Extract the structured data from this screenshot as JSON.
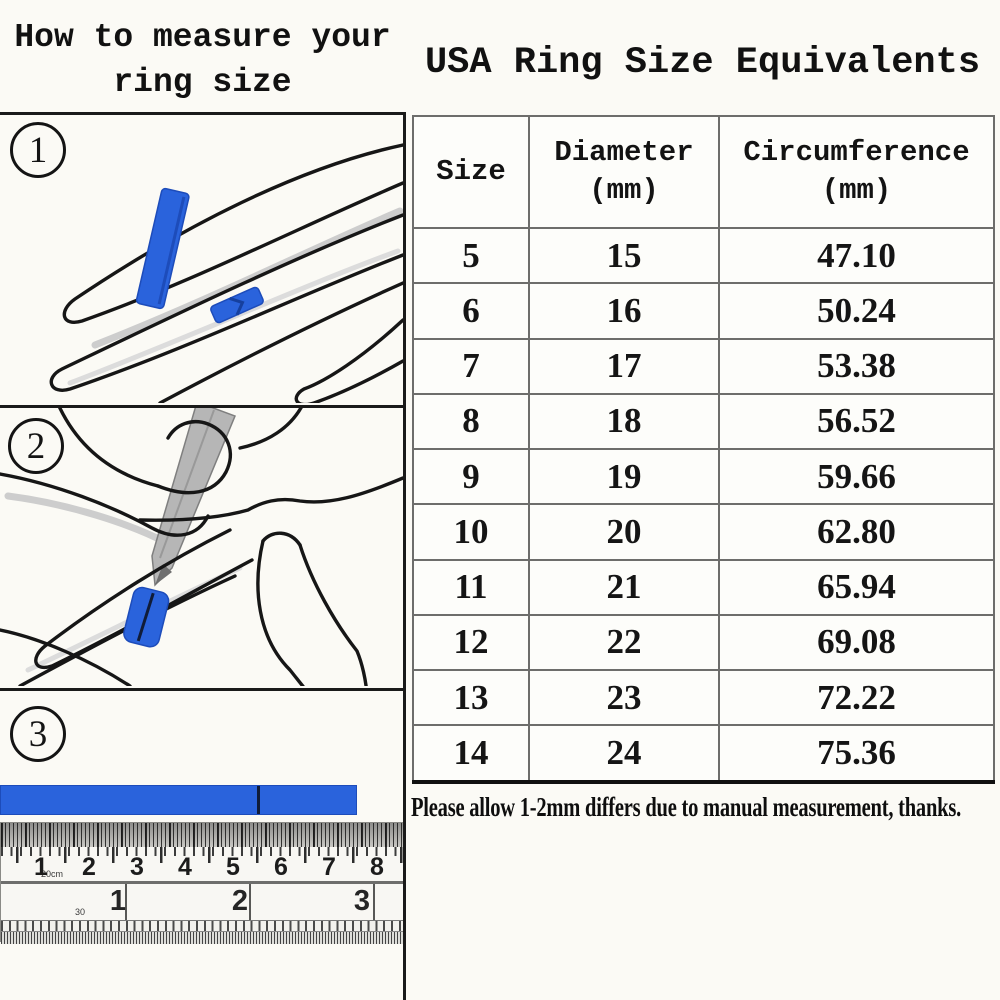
{
  "colors": {
    "accent_blue": "#2a63dc",
    "line_black": "#1a1a1a"
  },
  "left_section": {
    "title_line1": "How to measure your",
    "title_line2": "ring size",
    "steps": [
      {
        "number": "1",
        "illustration": "hand-with-blue-strip-wrapped-around-finger"
      },
      {
        "number": "2",
        "illustration": "pen-marking-blue-strip-on-finger"
      },
      {
        "number": "3",
        "illustration": "marked-blue-strip-laid-above-ruler"
      }
    ],
    "ruler": {
      "cm_numbers": [
        "1",
        "2",
        "3",
        "4",
        "5",
        "6",
        "7",
        "8"
      ],
      "cm_unit_label": "20cm",
      "inch_numbers": [
        "1",
        "2",
        "3"
      ],
      "inch_unit_label": "30"
    }
  },
  "right_section": {
    "title": "USA Ring Size Equivalents",
    "table": {
      "columns": [
        {
          "label": "Size",
          "unit": ""
        },
        {
          "label": "Diameter",
          "unit": "(mm)"
        },
        {
          "label": "Circumference",
          "unit": "(mm)"
        }
      ],
      "rows": [
        [
          "5",
          "15",
          "47.10"
        ],
        [
          "6",
          "16",
          "50.24"
        ],
        [
          "7",
          "17",
          "53.38"
        ],
        [
          "8",
          "18",
          "56.52"
        ],
        [
          "9",
          "19",
          "59.66"
        ],
        [
          "10",
          "20",
          "62.80"
        ],
        [
          "11",
          "21",
          "65.94"
        ],
        [
          "12",
          "22",
          "69.08"
        ],
        [
          "13",
          "23",
          "72.22"
        ],
        [
          "14",
          "24",
          "75.36"
        ]
      ]
    },
    "note": "Please allow 1-2mm differs due to manual measurement, thanks."
  }
}
